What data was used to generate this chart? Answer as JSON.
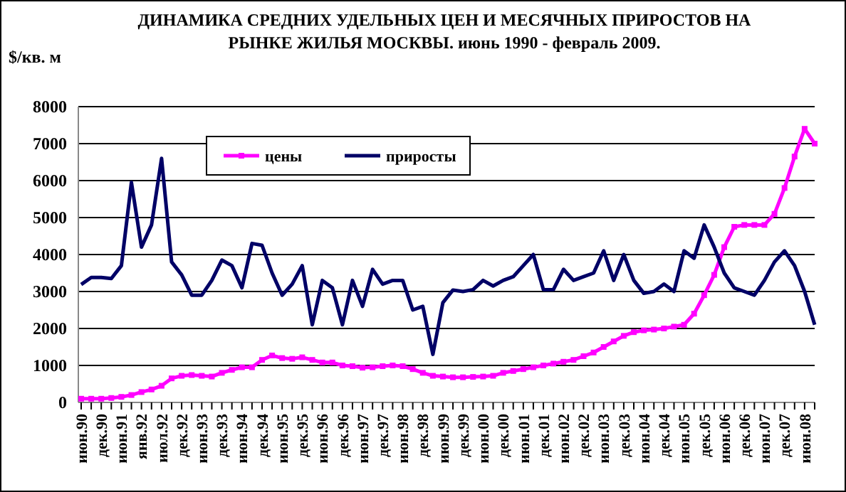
{
  "chart_data": {
    "type": "line",
    "title": "ДИНАМИКА СРЕДНИХ УДЕЛЬНЫХ ЦЕН И МЕСЯЧНЫХ ПРИРОСТОВ НА РЫНКЕ ЖИЛЬЯ МОСКВЫ. июнь 1990 - февраль 2009.",
    "ylabel": "$/кв. м",
    "categories": [
      "июн.90",
      null,
      "дек.90",
      null,
      "июн.91",
      null,
      "янв.92",
      null,
      "июл.92",
      null,
      "дек.92",
      null,
      "июн.93",
      null,
      "дек.93",
      null,
      "июн.94",
      null,
      "дек.94",
      null,
      "июн.95",
      null,
      "дек.95",
      null,
      "июн.96",
      null,
      "дек.96",
      null,
      "июн.97",
      null,
      "дек.97",
      null,
      "июн.98",
      null,
      "дек.98",
      null,
      "июн.99",
      null,
      "дек.99",
      null,
      "июн.00",
      null,
      "дек.00",
      null,
      "июн.01",
      null,
      "дек.01",
      null,
      "июн.02",
      null,
      "дек.02",
      null,
      "июн.03",
      null,
      "дек.03",
      null,
      "июн.04",
      null,
      "дек.04",
      null,
      "июн.05",
      null,
      "дек.05",
      null,
      "июн.06",
      null,
      "дек.06",
      null,
      "июн.07",
      null,
      "дек.07",
      null,
      "июн.08",
      null
    ],
    "series": [
      {
        "name": "цены",
        "color": "#ff00ff",
        "marker": "square",
        "values": [
          100,
          100,
          100,
          120,
          150,
          200,
          280,
          350,
          450,
          650,
          720,
          740,
          720,
          700,
          800,
          880,
          950,
          950,
          1150,
          1270,
          1200,
          1180,
          1220,
          1150,
          1080,
          1080,
          1000,
          980,
          940,
          950,
          980,
          1000,
          980,
          900,
          800,
          720,
          700,
          680,
          680,
          690,
          700,
          720,
          800,
          850,
          900,
          950,
          1000,
          1050,
          1100,
          1150,
          1250,
          1350,
          1500,
          1650,
          1800,
          1900,
          1950,
          1970,
          2000,
          2050,
          2100,
          2400,
          2900,
          3450,
          4200,
          4750,
          4800,
          4800,
          4800,
          5100,
          5800,
          6650,
          7400,
          7000
        ]
      },
      {
        "name": "приросты",
        "color": "#000066",
        "marker": "none",
        "values": [
          3190,
          3380,
          3380,
          3350,
          3700,
          5950,
          4200,
          4800,
          6600,
          3800,
          3450,
          2900,
          2900,
          3300,
          3850,
          3700,
          3100,
          4300,
          4250,
          3500,
          2900,
          3200,
          3700,
          2100,
          3300,
          3100,
          2100,
          3300,
          2600,
          3600,
          3200,
          3300,
          3300,
          2500,
          2600,
          1300,
          2700,
          3040,
          3000,
          3050,
          3300,
          3150,
          3300,
          3400,
          3700,
          4000,
          3050,
          3050,
          3600,
          3300,
          3400,
          3500,
          4100,
          3300,
          4000,
          3300,
          2950,
          3000,
          3200,
          3000,
          4100,
          3900,
          4800,
          4200,
          3500,
          3100,
          3000,
          2900,
          3300,
          3800,
          4100,
          3700,
          3000,
          2100
        ]
      }
    ],
    "ylim": [
      0,
      8000
    ],
    "yticks": [
      0,
      1000,
      2000,
      3000,
      4000,
      5000,
      6000,
      7000,
      8000
    ],
    "grid": "y",
    "legend": "top"
  }
}
